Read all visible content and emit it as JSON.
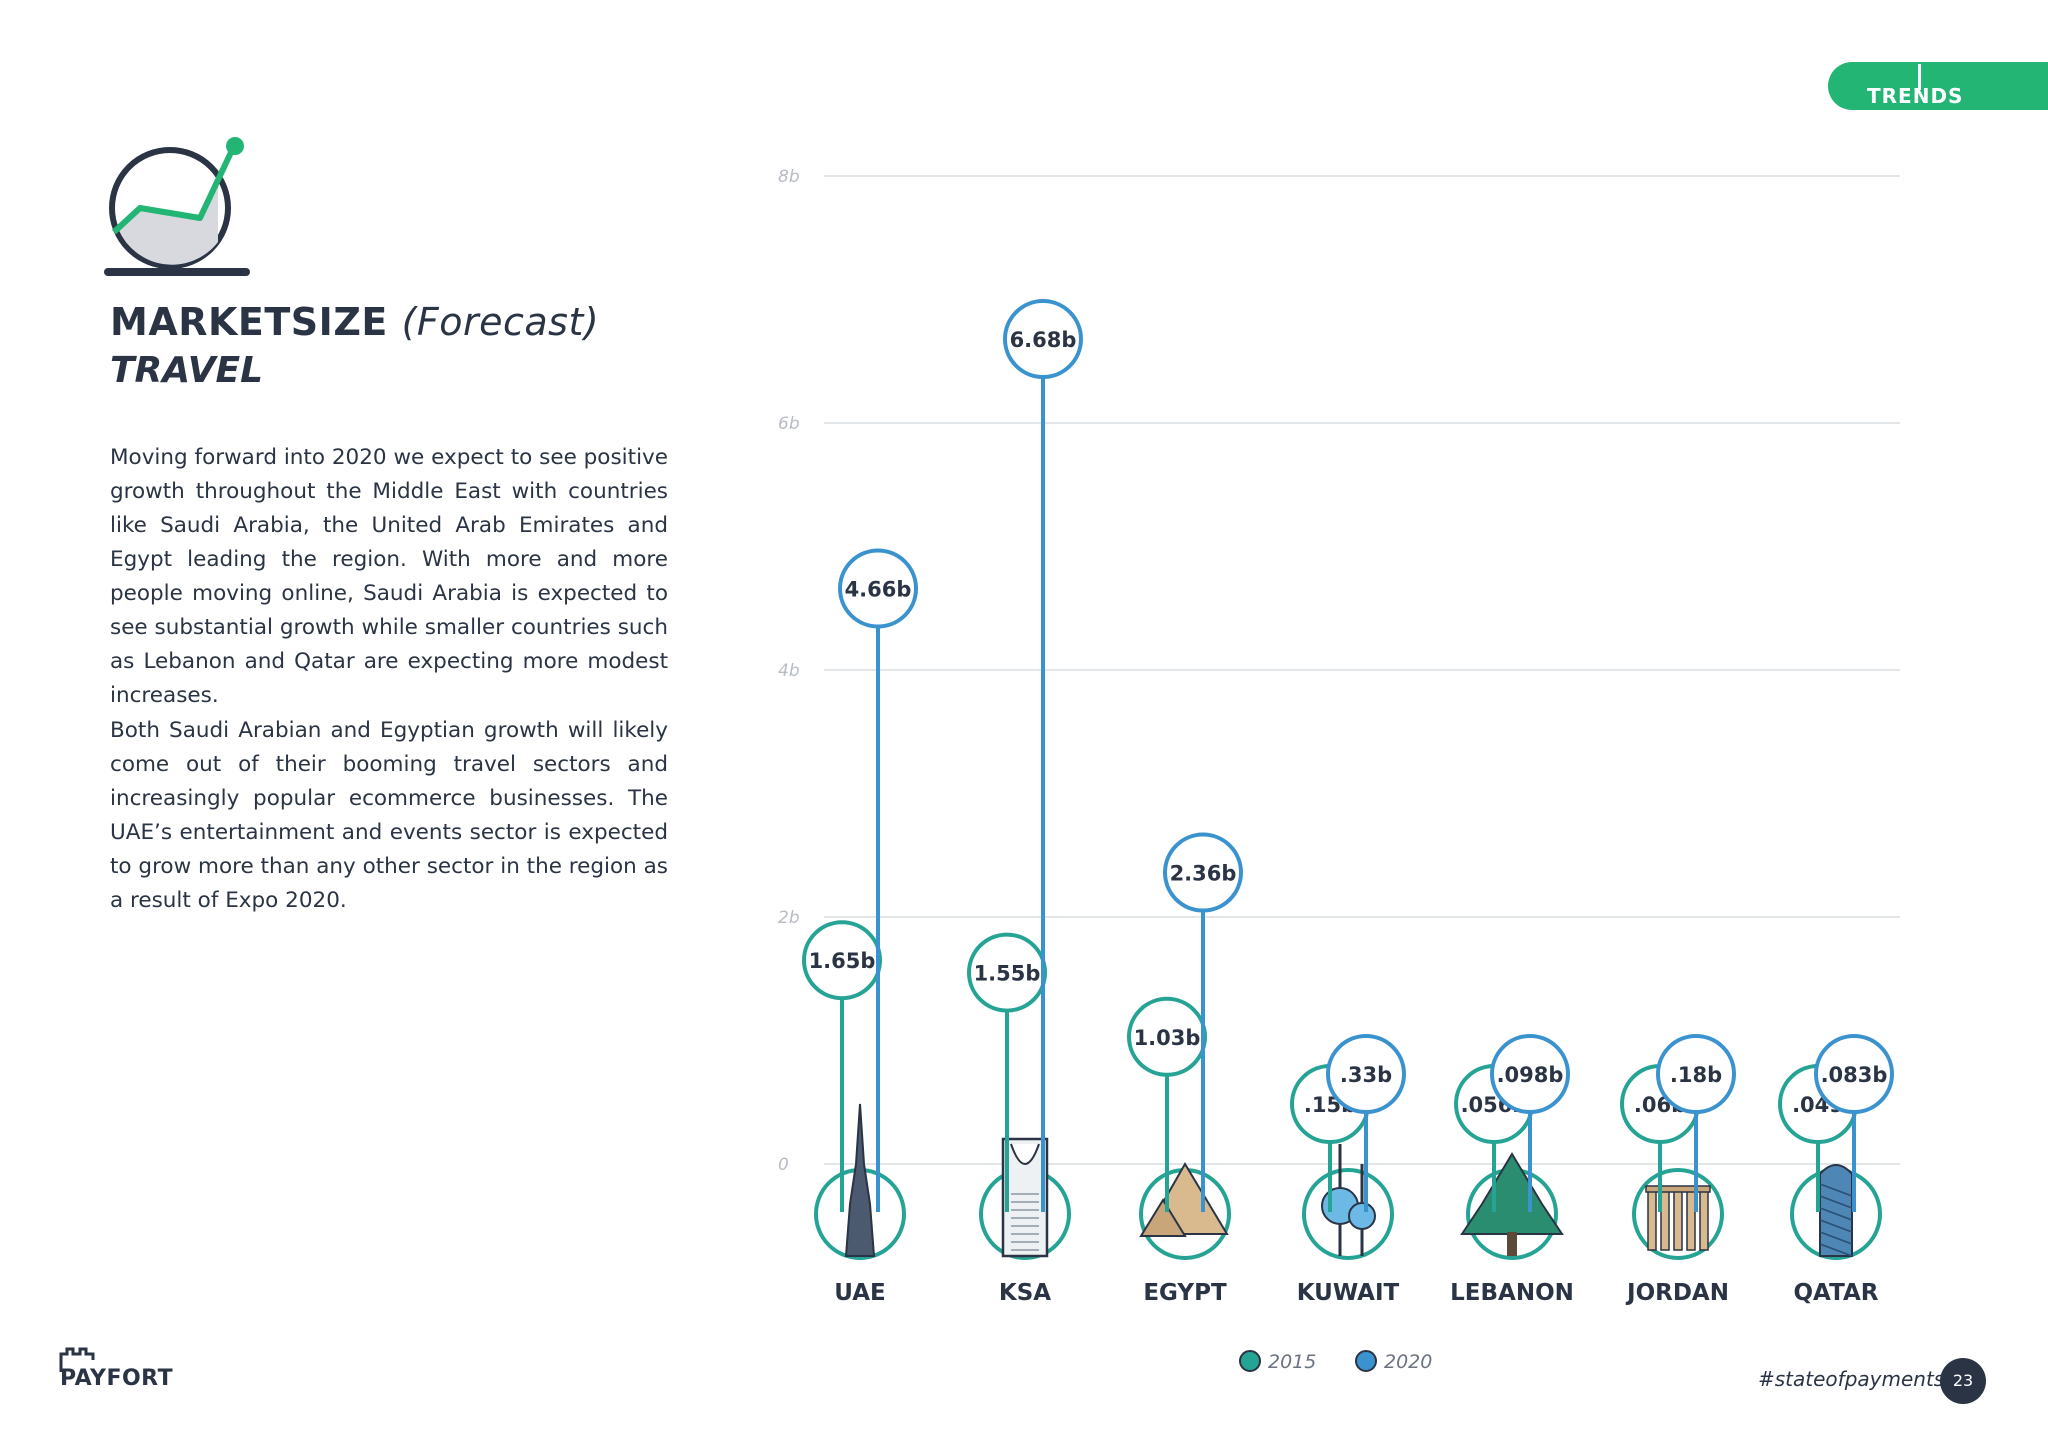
{
  "header": {
    "tab_label": "TRENDS"
  },
  "title": {
    "main": "MARKETSIZE",
    "qualifier": "(Forecast)",
    "subtitle": "TRAVEL"
  },
  "body": {
    "paragraph_1": "Moving forward into 2020 we expect to see positive growth throughout the Middle East with countries like Saudi Arabia, the United Arab Emirates and Egypt leading the region. With more and more people moving online, Saudi Arabia is expected to see substantial growth while smaller countries such as Lebanon and Qatar are expecting more modest increases.",
    "paragraph_2": "Both Saudi Arabian and Egyptian growth will likely come out of their booming travel sectors and increasingly popular ecommerce businesses. The UAE’s entertainment and events sector is expected to grow more than any other sector in the region as a result of Expo 2020."
  },
  "footer": {
    "logo": "PAYFORT",
    "hashtag": "#stateofpayments",
    "page_number": "23"
  },
  "colors": {
    "series_2015": "#25a394",
    "series_2020": "#3a93cf",
    "dark": "#2a3444",
    "accent": "#22b573"
  },
  "chart_data": {
    "type": "bar",
    "ylim": [
      0,
      8
    ],
    "yticks": [
      {
        "value": 0,
        "label": "0"
      },
      {
        "value": 2,
        "label": "2b"
      },
      {
        "value": 4,
        "label": "4b"
      },
      {
        "value": 6,
        "label": "6b"
      },
      {
        "value": 8,
        "label": "8b"
      }
    ],
    "grid": true,
    "legend_position": "bottom",
    "categories": [
      "UAE",
      "KSA",
      "EGYPT",
      "KUWAIT",
      "LEBANON",
      "JORDAN",
      "QATAR"
    ],
    "category_icons": [
      "burj-khalifa-icon",
      "kingdom-tower-icon",
      "pyramids-icon",
      "kuwait-towers-icon",
      "cedar-tree-icon",
      "jerash-columns-icon",
      "doha-tower-icon"
    ],
    "series": [
      {
        "name": "2015",
        "values": [
          1.65,
          1.55,
          1.03,
          0.15,
          0.056,
          0.06,
          0.049
        ],
        "labels": [
          "1.65b",
          "1.55b",
          "1.03b",
          ".15b",
          ".056b",
          ".06b",
          ".049"
        ]
      },
      {
        "name": "2020",
        "values": [
          4.66,
          6.68,
          2.36,
          0.33,
          0.098,
          0.18,
          0.083
        ],
        "labels": [
          "4.66b",
          "6.68b",
          "2.36b",
          ".33b",
          ".098b",
          ".18b",
          ".083b"
        ]
      }
    ]
  }
}
